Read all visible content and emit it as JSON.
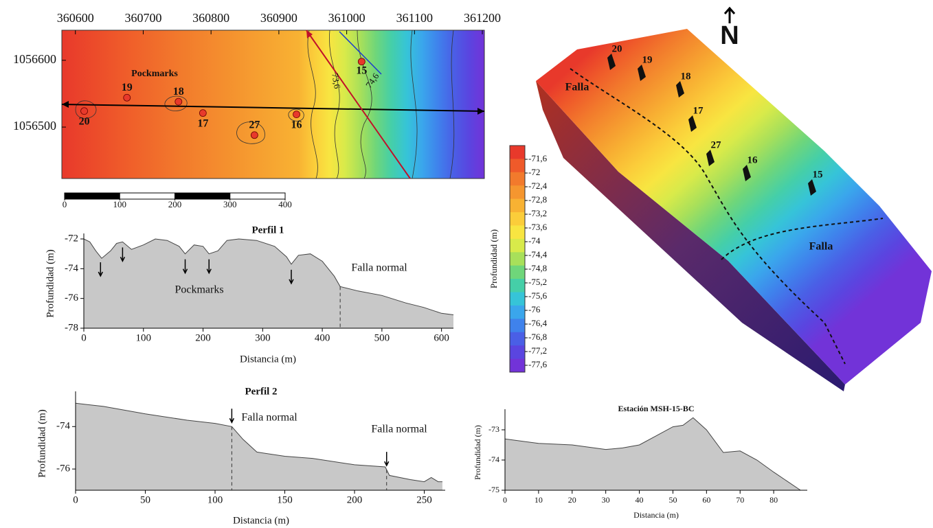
{
  "chart_data": [
    {
      "type": "map",
      "xlim": [
        360580,
        361203
      ],
      "xticks": [
        360600,
        360700,
        360800,
        360900,
        361000,
        361100,
        361200
      ],
      "ylim": [
        1056423,
        1056645
      ],
      "yticks": [
        1056500,
        1056600
      ],
      "points": [
        {
          "label": "20",
          "x": 360613,
          "y": 1056524
        },
        {
          "label": "19",
          "x": 360676,
          "y": 1056544
        },
        {
          "label": "18",
          "x": 360752,
          "y": 1056538
        },
        {
          "label": "17",
          "x": 360788,
          "y": 1056521
        },
        {
          "label": "27",
          "x": 360864,
          "y": 1056488
        },
        {
          "label": "16",
          "x": 360926,
          "y": 1056519
        },
        {
          "label": "15",
          "x": 361022,
          "y": 1056598
        }
      ],
      "annotation": "Pockmarks",
      "contour_labels": [
        "73,6",
        "74,6"
      ],
      "scale_ticks": [
        0,
        100,
        200,
        300,
        400
      ],
      "color": "#e8392b"
    },
    {
      "type": "area",
      "title": "Perfil 1",
      "xlabel": "Distancia (m)",
      "ylabel": "Profundidad (m)",
      "x": [
        0,
        10,
        20,
        30,
        45,
        55,
        65,
        80,
        100,
        120,
        140,
        160,
        170,
        185,
        200,
        210,
        225,
        240,
        260,
        290,
        320,
        340,
        348,
        360,
        380,
        400,
        420,
        430,
        460,
        500,
        540,
        570,
        600,
        620
      ],
      "values": [
        -72,
        -72.2,
        -72.8,
        -73.3,
        -72.8,
        -72.3,
        -72.2,
        -72.7,
        -72.4,
        -72,
        -72.1,
        -72.5,
        -73,
        -72.4,
        -72.5,
        -73,
        -72.8,
        -72.1,
        -72,
        -72.1,
        -72.5,
        -73.2,
        -73.7,
        -73.1,
        -73,
        -73.5,
        -74.5,
        -75.2,
        -75.5,
        -75.8,
        -76.3,
        -76.6,
        -77,
        -77.1
      ],
      "xlim": [
        0,
        620
      ],
      "xticks": [
        0,
        100,
        200,
        300,
        400,
        500,
        600
      ],
      "ylim": [
        -78,
        -72
      ],
      "yticks": [
        -72,
        -74,
        -76,
        -78
      ],
      "arrows": [
        28,
        65,
        170,
        210,
        348
      ],
      "faults": [
        430
      ],
      "annotations": [
        "Pockmarks",
        "Falla normal"
      ],
      "color": "#c8c8c8"
    },
    {
      "type": "area",
      "title": "Perfil 2",
      "xlabel": "Distancia (m)",
      "ylabel": "Profundidad (m)",
      "x": [
        0,
        20,
        50,
        80,
        100,
        112,
        120,
        130,
        150,
        170,
        200,
        222,
        225,
        240,
        250,
        255,
        260,
        263
      ],
      "values": [
        -72.9,
        -73.05,
        -73.4,
        -73.7,
        -73.85,
        -74,
        -74.6,
        -75.2,
        -75.4,
        -75.5,
        -75.8,
        -75.9,
        -76.3,
        -76.5,
        -76.6,
        -76.4,
        -76.6,
        -76.6
      ],
      "xlim": [
        0,
        265
      ],
      "xticks": [
        0,
        50,
        100,
        150,
        200,
        250
      ],
      "ylim": [
        -77,
        -72.6
      ],
      "yticks": [
        -74,
        -76
      ],
      "arrows": [
        112,
        223
      ],
      "faults": [
        112,
        223
      ],
      "annotations": [
        "Falla normal",
        "Falla normal"
      ],
      "color": "#c8c8c8"
    },
    {
      "type": "area",
      "title": "Estación MSH-15-BC",
      "xlabel": "Distancia (m)",
      "ylabel": "Profundidad (m)",
      "x": [
        0,
        10,
        20,
        30,
        35,
        40,
        45,
        50,
        53,
        56,
        60,
        65,
        70,
        75,
        80,
        88
      ],
      "values": [
        -73.3,
        -73.45,
        -73.5,
        -73.65,
        -73.6,
        -73.5,
        -73.2,
        -72.9,
        -72.85,
        -72.6,
        -73,
        -73.75,
        -73.7,
        -74,
        -74.4,
        -75
      ],
      "xlim": [
        0,
        90
      ],
      "xticks": [
        0,
        10,
        20,
        30,
        40,
        50,
        60,
        70,
        80
      ],
      "ylim": [
        -75,
        -72.5
      ],
      "yticks": [
        -73,
        -74,
        -75
      ],
      "arrows": [],
      "faults": [],
      "annotations": [],
      "color": "#c8c8c8"
    },
    {
      "type": "colorbar",
      "label": "Profundidad (m)",
      "clim": [
        -77.8,
        -71.2
      ],
      "ticks": [
        {
          "value": -71.6,
          "label": "-71,6"
        },
        {
          "value": -72,
          "label": "-72"
        },
        {
          "value": -72.4,
          "label": "-72,4"
        },
        {
          "value": -72.8,
          "label": "-72,8"
        },
        {
          "value": -73.2,
          "label": "-73,2"
        },
        {
          "value": -73.6,
          "label": "-73,6"
        },
        {
          "value": -74,
          "label": "-74"
        },
        {
          "value": -74.4,
          "label": "-74,4"
        },
        {
          "value": -74.8,
          "label": "-74,8"
        },
        {
          "value": -75.2,
          "label": "-75,2"
        },
        {
          "value": -75.6,
          "label": "-75,6"
        },
        {
          "value": -76,
          "label": "-76"
        },
        {
          "value": -76.4,
          "label": "-76,4"
        },
        {
          "value": -76.8,
          "label": "-76,8"
        },
        {
          "value": -77.2,
          "label": "-77,2"
        },
        {
          "value": -77.6,
          "label": "-77,6"
        }
      ],
      "colors": [
        "#e8392b",
        "#ef5a2a",
        "#f27a2c",
        "#f5962f",
        "#f8b233",
        "#fbcd3a",
        "#f8e541",
        "#d8ea4a",
        "#a8e05a",
        "#6fd67a",
        "#45cfa8",
        "#36c4d8",
        "#3aa6ec",
        "#3f82ec",
        "#4a5fe6",
        "#5a45e0",
        "#7233d8"
      ]
    },
    {
      "type": "surface3d",
      "labels": [
        "20",
        "19",
        "18",
        "17",
        "27",
        "16",
        "15"
      ],
      "fault_labels": [
        "Falla",
        "Falla"
      ],
      "north": "N"
    }
  ]
}
